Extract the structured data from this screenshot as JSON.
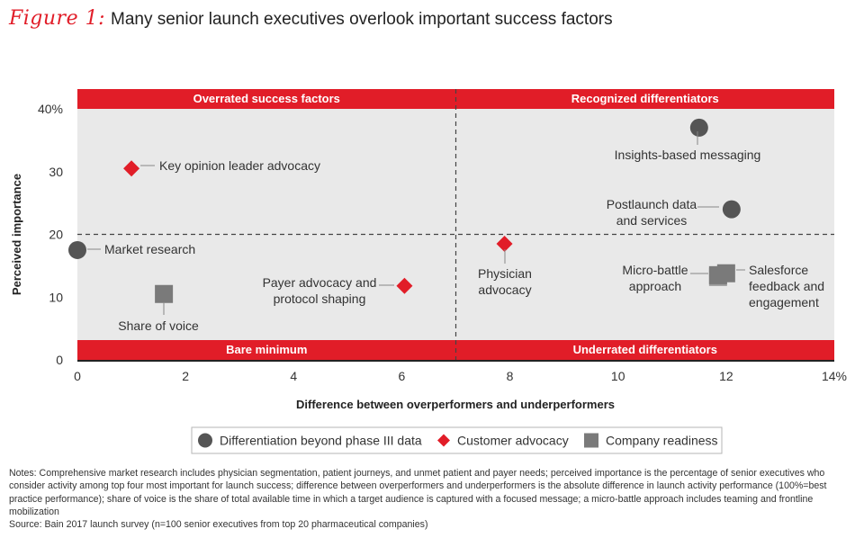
{
  "figure": {
    "label": "Figure 1:",
    "title": "Many senior launch executives overlook important success factors"
  },
  "chart_data": {
    "type": "scatter",
    "xlabel": "Difference between overperformers and underperformers",
    "ylabel": "Perceived importance",
    "xlim": [
      0,
      14
    ],
    "ylim": [
      0,
      40
    ],
    "x_ticks": [
      "0",
      "2",
      "4",
      "6",
      "8",
      "10",
      "12",
      "14%"
    ],
    "y_ticks": [
      "0",
      "10",
      "20",
      "30",
      "40%"
    ],
    "divider_x": 7,
    "divider_y": 20,
    "quadrants": {
      "top_left": "Overrated success factors",
      "top_right": "Recognized differentiators",
      "bottom_left": "Bare minimum",
      "bottom_right": "Underrated differentiators"
    },
    "series": [
      {
        "name": "Differentiation beyond phase III data",
        "marker": "circle",
        "color": "#555555",
        "points": [
          {
            "x": 0,
            "y": 17.5,
            "label": "Market research"
          },
          {
            "x": 11.5,
            "y": 37,
            "label": "Insights-based messaging"
          },
          {
            "x": 12.1,
            "y": 24,
            "label": "Postlaunch data and services"
          }
        ]
      },
      {
        "name": "Customer advocacy",
        "marker": "diamond",
        "color": "#e11d28",
        "points": [
          {
            "x": 1,
            "y": 30.5,
            "label": "Key opinion leader advocacy"
          },
          {
            "x": 6.05,
            "y": 11.8,
            "label": "Payer advocacy and protocol shaping"
          },
          {
            "x": 7.9,
            "y": 18.5,
            "label": "Physician advocacy"
          }
        ]
      },
      {
        "name": "Company readiness",
        "marker": "square",
        "color": "#7a7a7a",
        "points": [
          {
            "x": 1.6,
            "y": 10.5,
            "label": "Share of voice"
          },
          {
            "x": 11.85,
            "y": 13.5,
            "label": "Micro-battle approach"
          },
          {
            "x": 12,
            "y": 13.8,
            "label": "Salesforce feedback and engagement"
          }
        ]
      }
    ],
    "colors": {
      "accent": "#e11d28",
      "plot_background": "#e9e9e9"
    },
    "legend_position": "bottom-center"
  },
  "notes": {
    "text": "Notes: Comprehensive market research includes physician segmentation, patient journeys, and unmet patient and payer needs; perceived importance is the percentage of senior executives who consider activity among top four most important for launch success; difference between overperformers and underperformers is the absolute difference in launch activity performance (100%=best practice performance); share of voice is the share of total available time in which a target audience is captured with a focused message; a micro-battle approach includes teaming and frontline mobilization",
    "source": "Source: Bain 2017 launch survey (n=100 senior executives from top 20 pharmaceutical companies)"
  }
}
